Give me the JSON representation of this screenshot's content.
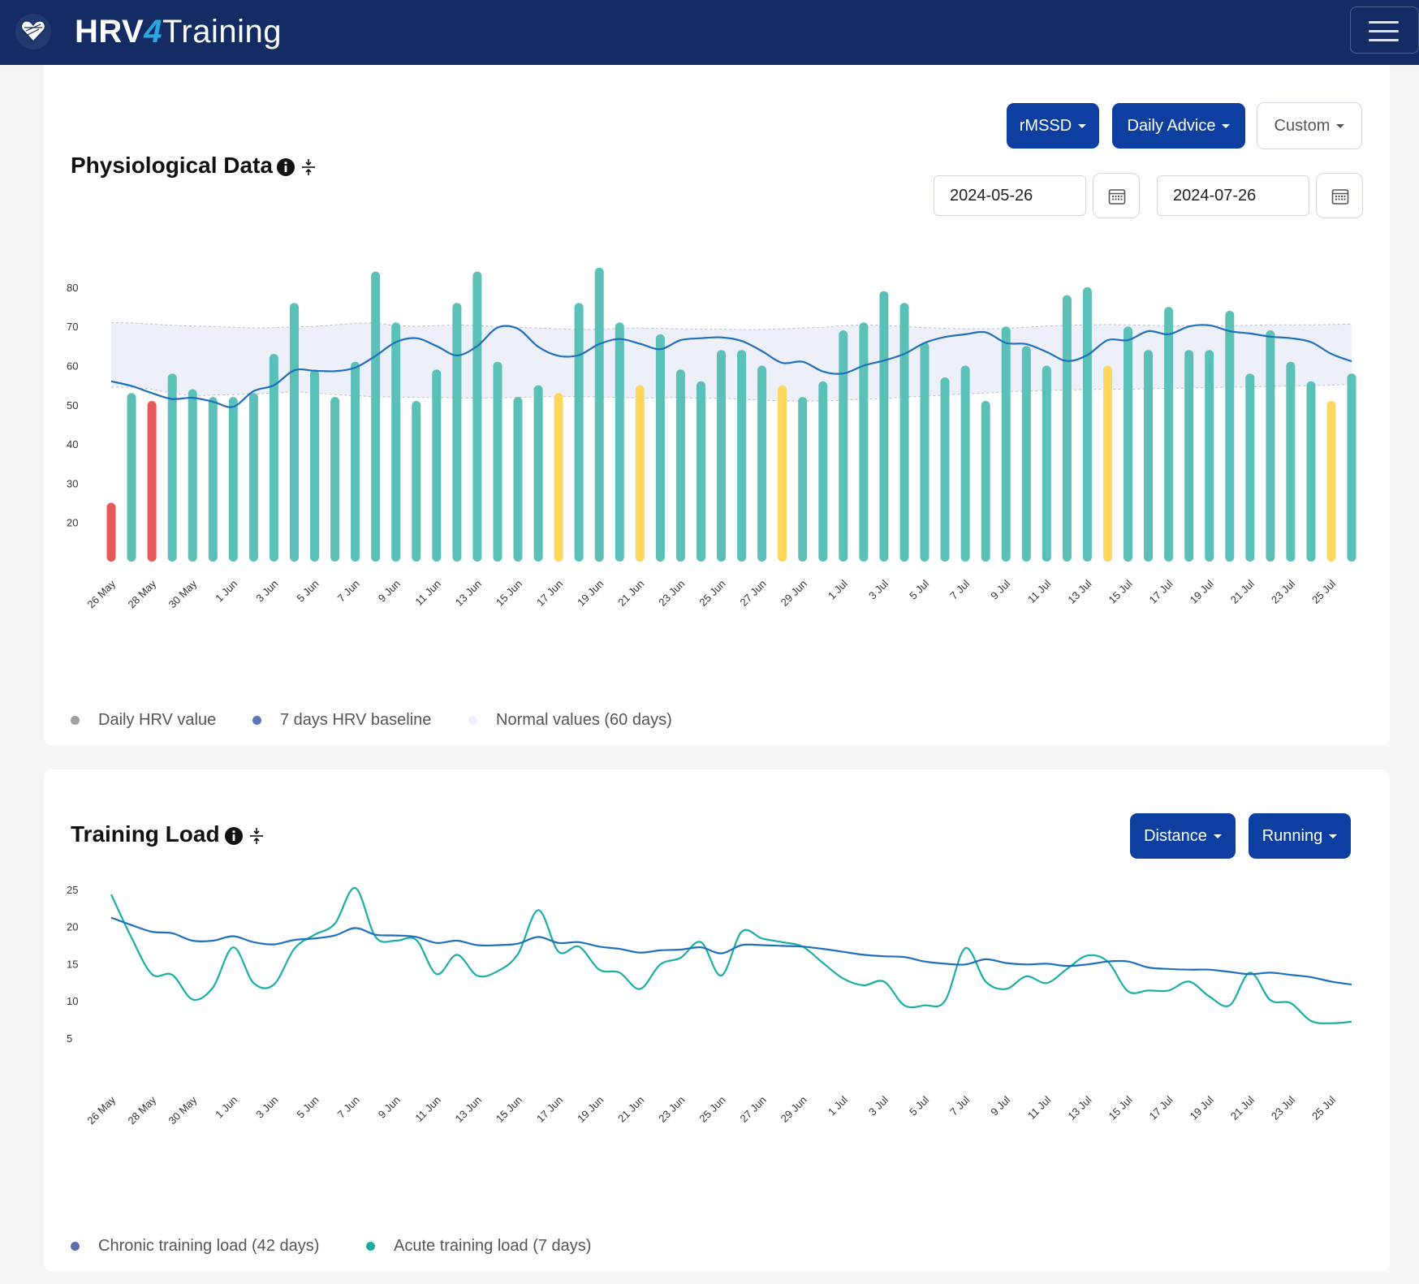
{
  "app": {
    "brand_part1": "HRV",
    "brand_part2": "4",
    "brand_part3": "Training"
  },
  "physio": {
    "title": "Physiological Data",
    "metric_label": "rMSSD",
    "advice_label": "Daily Advice",
    "range_label": "Custom",
    "start_date": "2024-05-26",
    "end_date": "2024-07-26",
    "legend": [
      "Daily HRV value",
      "7 days HRV baseline",
      "Normal values (60 days)"
    ]
  },
  "load": {
    "title": "Training Load",
    "metric_label": "Distance",
    "sport_label": "Running",
    "legend": [
      "Chronic training load (42 days)",
      "Acute training load (7 days)"
    ]
  },
  "colors": {
    "navbar": "#142c63",
    "primary": "#0d3fa1",
    "hrv_normal": "#5bc0b8",
    "hrv_low": "#e85a5a",
    "hrv_warn": "#ffd75e",
    "baseline": "#1f6fbb",
    "acute": "#1aada6",
    "legend_daily": "#a0a0a0",
    "legend_baseline": "#5a78b8",
    "legend_normal": "#eef1f8",
    "legend_chronic": "#5a6fb0"
  },
  "chart_data": [
    {
      "type": "bar",
      "x_tick_labels": [
        "26 May",
        "28 May",
        "30 May",
        "1 Jun",
        "3 Jun",
        "5 Jun",
        "7 Jun",
        "9 Jun",
        "11 Jun",
        "13 Jun",
        "15 Jun",
        "17 Jun",
        "19 Jun",
        "21 Jun",
        "23 Jun",
        "25 Jun",
        "27 Jun",
        "29 Jun",
        "1 Jul",
        "3 Jul",
        "5 Jul",
        "7 Jul",
        "9 Jul",
        "11 Jul",
        "13 Jul",
        "15 Jul",
        "17 Jul",
        "19 Jul",
        "21 Jul",
        "23 Jul",
        "25 Jul"
      ],
      "y_ticks": [
        20,
        30,
        40,
        50,
        60,
        70,
        80
      ],
      "ylim": [
        10,
        87
      ],
      "series": [
        {
          "name": "Daily HRV value",
          "values": [
            25,
            53,
            51,
            58,
            54,
            52,
            52,
            53,
            63,
            76,
            59,
            52,
            61,
            84,
            71,
            51,
            59,
            76,
            84,
            61,
            52,
            55,
            53,
            76,
            85,
            71,
            55,
            68,
            59,
            56,
            64,
            64,
            60,
            55,
            52,
            56,
            69,
            71,
            79,
            76,
            66,
            57,
            60,
            51,
            70,
            65,
            60,
            78,
            80,
            60,
            70,
            64,
            75,
            64,
            64,
            74,
            58,
            69,
            61,
            56,
            51,
            58
          ],
          "status": [
            "low",
            "normal",
            "low",
            "normal",
            "normal",
            "normal",
            "normal",
            "normal",
            "normal",
            "normal",
            "normal",
            "normal",
            "normal",
            "normal",
            "normal",
            "normal",
            "normal",
            "normal",
            "normal",
            "normal",
            "normal",
            "normal",
            "warn",
            "normal",
            "normal",
            "normal",
            "warn",
            "normal",
            "normal",
            "normal",
            "normal",
            "normal",
            "normal",
            "warn",
            "normal",
            "normal",
            "normal",
            "normal",
            "normal",
            "normal",
            "normal",
            "normal",
            "normal",
            "normal",
            "normal",
            "normal",
            "normal",
            "normal",
            "normal",
            "warn",
            "normal",
            "normal",
            "normal",
            "normal",
            "normal",
            "normal",
            "normal",
            "normal",
            "normal",
            "normal",
            "warn",
            "normal"
          ]
        },
        {
          "name": "7 days HRV baseline",
          "values": [
            56,
            54.8,
            53,
            51.5,
            51.8,
            50.8,
            49.5,
            53.5,
            55,
            58.8,
            58.7,
            58.6,
            59.5,
            62.5,
            66,
            67,
            65,
            62.6,
            65,
            69.7,
            69.4,
            64.8,
            62.5,
            62.7,
            65.5,
            66.8,
            65.6,
            64.2,
            66.5,
            67,
            67.2,
            66.3,
            63.7,
            60.7,
            61,
            58.5,
            58,
            60,
            61.3,
            63,
            65.8,
            67.3,
            68,
            68.5,
            65.8,
            65.5,
            63.5,
            61.2,
            62.7,
            66.5,
            66.5,
            68.8,
            68,
            70,
            70.3,
            68.8,
            68.2,
            67.4,
            67,
            66,
            63,
            61.1
          ]
        },
        {
          "name": "Normal values (60 days)",
          "upper": [
            71,
            70.9,
            70.6,
            70.3,
            70.1,
            70,
            69.8,
            69.6,
            69.7,
            69.9,
            70,
            70.4,
            70.8,
            70.9,
            70.2,
            70,
            70.2,
            70.4,
            70.2,
            70,
            69.8,
            69.6,
            69.4,
            69.2,
            69.3,
            69.5,
            69.6,
            69.5,
            69.4,
            69.3,
            69.3,
            69.2,
            69.2,
            69.4,
            69.6,
            69.8,
            70.2,
            70.4,
            70.3,
            70,
            69.7,
            69.5,
            69.4,
            69.4,
            69.5,
            69.8,
            70.1,
            70.3,
            70.4,
            70.5,
            70.4,
            70.3,
            70.2,
            70.2,
            70.2,
            70.2,
            70.3,
            70.4,
            70.4,
            70.4,
            70.5,
            70.6
          ],
          "lower": [
            54.5,
            54.5,
            54,
            53,
            52.2,
            52.5,
            52.6,
            52.8,
            53,
            53.4,
            53,
            52.6,
            52.3,
            52.1,
            52,
            51.9,
            51.9,
            51.8,
            51.7,
            51.8,
            51.9,
            52,
            52.2,
            52.1,
            52,
            51.9,
            51.7,
            51.8,
            51.9,
            51.6,
            51.7,
            51.4,
            51.2,
            51,
            51,
            51,
            51.2,
            51.4,
            51.6,
            52,
            52.2,
            52.5,
            52.8,
            53,
            53.3,
            53.5,
            53.7,
            53.8,
            53.9,
            54,
            54,
            54.1,
            54.2,
            54.3,
            54.4,
            54.5,
            54.6,
            54.7,
            54.8,
            54.9,
            55,
            55.3
          ]
        }
      ]
    },
    {
      "type": "line",
      "x_tick_labels": [
        "26 May",
        "28 May",
        "30 May",
        "1 Jun",
        "3 Jun",
        "5 Jun",
        "7 Jun",
        "9 Jun",
        "11 Jun",
        "13 Jun",
        "15 Jun",
        "17 Jun",
        "19 Jun",
        "21 Jun",
        "23 Jun",
        "25 Jun",
        "27 Jun",
        "29 Jun",
        "1 Jul",
        "3 Jul",
        "5 Jul",
        "7 Jul",
        "9 Jul",
        "11 Jul",
        "13 Jul",
        "15 Jul",
        "17 Jul",
        "19 Jul",
        "21 Jul",
        "23 Jul",
        "25 Jul"
      ],
      "y_ticks": [
        5,
        10,
        15,
        20,
        25
      ],
      "ylim": [
        0.5,
        27
      ],
      "series": [
        {
          "name": "Chronic training load (42 days)",
          "values": [
            21.2,
            20.2,
            19.3,
            19.1,
            18.1,
            18.1,
            18.7,
            17.9,
            17.6,
            18.2,
            18.4,
            18.8,
            19.8,
            18.9,
            18.8,
            18.6,
            17.8,
            18.1,
            17.5,
            17.5,
            17.7,
            18.6,
            17.8,
            17.9,
            17.3,
            17,
            16.5,
            16.8,
            16.9,
            17.2,
            16.4,
            17.5,
            17.5,
            17.4,
            17.3,
            17,
            16.6,
            16.2,
            16,
            15.9,
            15.3,
            15,
            14.9,
            15.6,
            15.1,
            14.9,
            15,
            14.7,
            14.9,
            15.3,
            15.3,
            14.5,
            14.3,
            14.2,
            14.2,
            13.9,
            13.6,
            13.8,
            13.5,
            13.2,
            12.6,
            12.2
          ]
        },
        {
          "name": "Acute training load (7 days)",
          "values": [
            24.3,
            18.5,
            13.6,
            13.5,
            10.2,
            11.8,
            17.2,
            12.4,
            12.2,
            17,
            18.9,
            20.4,
            25.2,
            18.6,
            18.1,
            18.2,
            13.6,
            16.2,
            13.4,
            14,
            16.3,
            22.2,
            16.6,
            17.3,
            14.2,
            13.8,
            11.6,
            14.9,
            15.8,
            17.9,
            13.4,
            19.3,
            18.4,
            17.9,
            17.3,
            15.1,
            13,
            12.1,
            12.6,
            9.4,
            9.4,
            10,
            17.1,
            12.6,
            11.6,
            13.3,
            12.4,
            14.3,
            16.1,
            15.3,
            11.3,
            11.4,
            11.4,
            12.6,
            10.6,
            9.4,
            13.8,
            10.1,
            9.7,
            7.3,
            7,
            7.2
          ]
        }
      ]
    }
  ]
}
